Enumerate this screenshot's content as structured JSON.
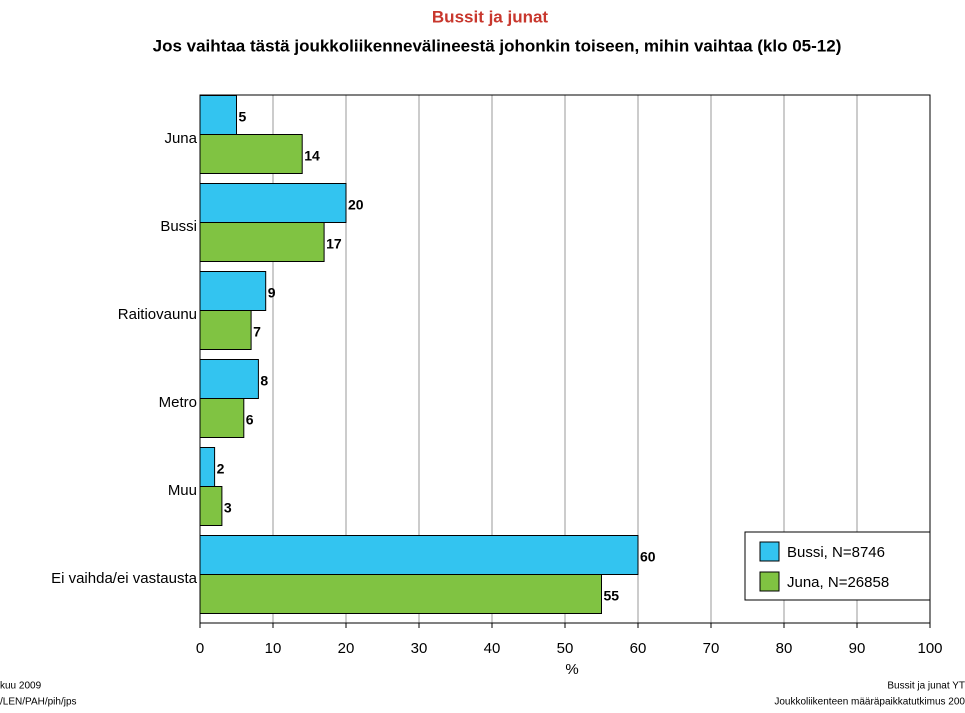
{
  "chart_data": {
    "type": "hbar",
    "title": "Bussit ja junat",
    "subtitle": "Jos vaihtaa tästä joukkoliikennevälineestä johonkin toiseen, mihin vaihtaa (klo 05-12)",
    "categories": [
      "Juna",
      "Bussi",
      "Raitiovaunu",
      "Metro",
      "Muu",
      "Ei vaihda/ei vastausta"
    ],
    "series": [
      {
        "name": "Bussi, N=8746",
        "color": "#33c4f0",
        "values": [
          5,
          20,
          9,
          8,
          2,
          60
        ]
      },
      {
        "name": "Juna, N=26858",
        "color": "#80c342",
        "values": [
          14,
          17,
          7,
          6,
          3,
          55
        ]
      }
    ],
    "xlabel": "%",
    "xlim": [
      0,
      100
    ],
    "xticks": [
      0,
      10,
      20,
      30,
      40,
      50,
      60,
      70,
      80,
      90,
      100
    ],
    "grid": true,
    "legend": "lower right",
    "footer_left": [
      "kuu 2009",
      "/LEN/PAH/pih/jps"
    ],
    "footer_right": [
      "Bussit ja junat YT",
      "Joukkoliikenteen määräpaikkatutkimus 200"
    ]
  }
}
